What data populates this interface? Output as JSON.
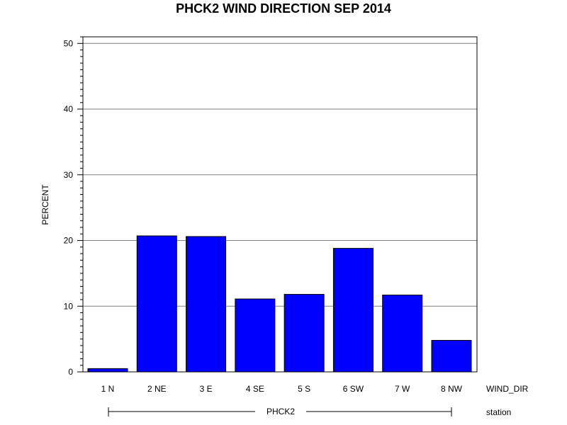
{
  "chart_data": {
    "type": "bar",
    "title": "PHCK2 WIND DIRECTION SEP 2014",
    "ylabel": "PERCENT",
    "xlabel": "WIND_DIR",
    "group_axis_label": "station",
    "group_name": "PHCK2",
    "categories": [
      "1 N",
      "2 NE",
      "3 E",
      "4 SE",
      "5 S",
      "6 SW",
      "7 W",
      "8 NW"
    ],
    "values": [
      0.5,
      20.7,
      20.6,
      11.1,
      11.8,
      18.8,
      11.7,
      4.8
    ],
    "ylim": [
      0,
      51
    ],
    "yticks": [
      0,
      10,
      20,
      30,
      40,
      50
    ],
    "ytick_labels": [
      "0",
      "10",
      "20",
      "30",
      "40",
      "50"
    ],
    "grid": true,
    "bar_color": "#0000ff"
  }
}
